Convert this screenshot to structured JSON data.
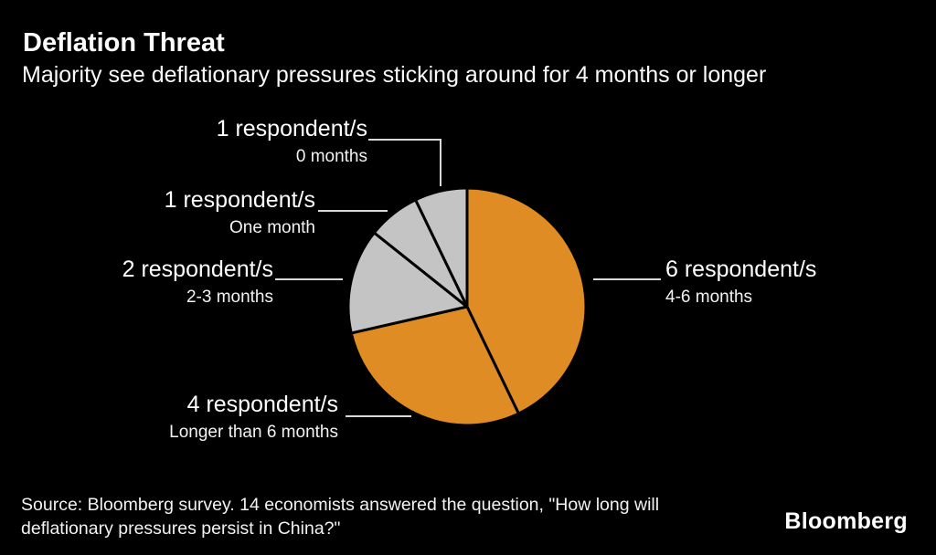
{
  "header": {
    "title": "Deflation Threat",
    "subtitle": "Majority see deflationary pressures sticking around for 4 months or longer"
  },
  "chart_data": {
    "type": "pie",
    "title": "Deflation Threat",
    "subtitle": "Majority see deflationary pressures sticking around for 4 months or longer",
    "total_respondents": 14,
    "start_angle_deg": 0,
    "direction": "clockwise",
    "slices": [
      {
        "label": "4-6 months",
        "value": 6,
        "respondents_label": "6 respondent/s",
        "color": "#DE8C23"
      },
      {
        "label": "Longer than 6 months",
        "value": 4,
        "respondents_label": "4 respondent/s",
        "color": "#DE8C23"
      },
      {
        "label": "2-3 months",
        "value": 2,
        "respondents_label": "2 respondent/s",
        "color": "#C4C4C4"
      },
      {
        "label": "One month",
        "value": 1,
        "respondents_label": "1 respondent/s",
        "color": "#C4C4C4"
      },
      {
        "label": "0 months",
        "value": 1,
        "respondents_label": "1 respondent/s",
        "color": "#C4C4C4"
      }
    ],
    "divider_color": "#000000",
    "background_color": "#000000",
    "text_color": "#FFFFFF",
    "leader_line_color": "#D9D9D9",
    "legend_position": "callout-labels"
  },
  "footer": {
    "source_lines": [
      "Source: Bloomberg survey. 14 economists answered the question, \"How long will",
      "deflationary pressures persist in China?\""
    ],
    "brand": "Bloomberg"
  }
}
